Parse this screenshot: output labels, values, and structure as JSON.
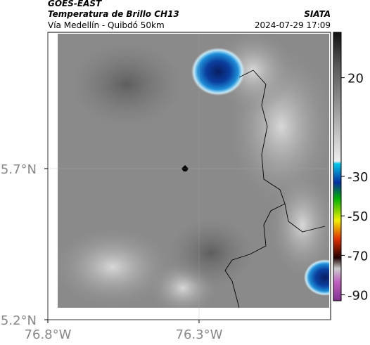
{
  "header": {
    "source": "GOES-EAST",
    "title": "Temperatura de Brillo CH13",
    "subtitle": "Vía Medellín - Quibdó 50km",
    "brand": "SIATA",
    "timestamp": "2024-07-29 17:09"
  },
  "map": {
    "xlim": [
      -76.8,
      -75.865
    ],
    "ylim": [
      5.2,
      6.151
    ],
    "xticks": [
      {
        "value": -76.8,
        "label": "76.8°W"
      },
      {
        "value": -76.3,
        "label": "76.3°W"
      }
    ],
    "yticks": [
      {
        "value": 5.2,
        "label": "5.2°N"
      },
      {
        "value": 5.7,
        "label": "5.7°N"
      }
    ],
    "grid": true
  },
  "colorbar": {
    "lim": [
      43,
      -93
    ],
    "ticks": [
      20,
      -30,
      -50,
      -70,
      -90
    ]
  }
}
